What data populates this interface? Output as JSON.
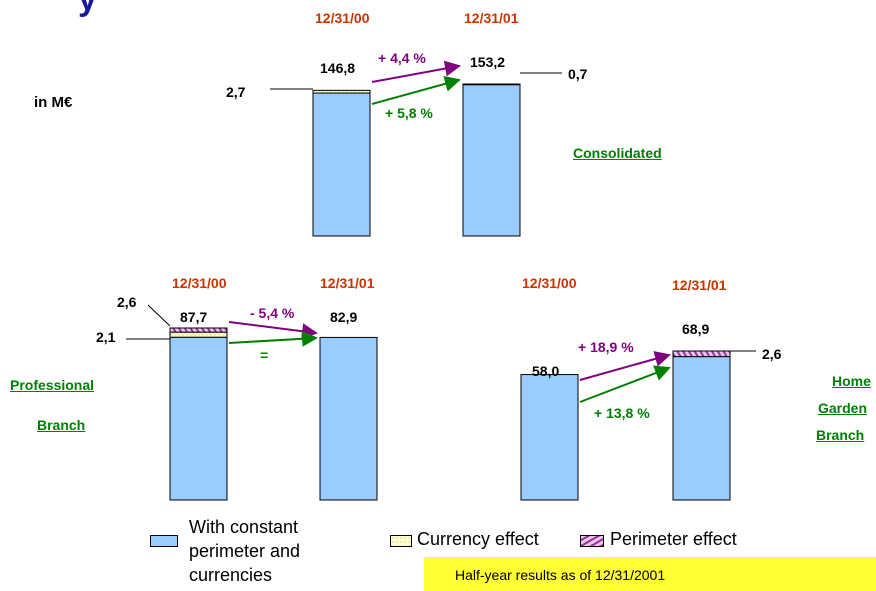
{
  "unit_label": "in M€",
  "colors": {
    "constant": "#99ccff",
    "currency": "#ffffcc",
    "perimeter": "#cc99cc",
    "date": "#cc3300",
    "purple": "#800080",
    "green": "#008000",
    "footer": "#ffff33"
  },
  "consolidated": {
    "label": "Consolidated",
    "date1": "12/31/00",
    "date2": "12/31/01",
    "total1": "146,8",
    "total2": "153,2",
    "side1": "2,7",
    "side2": "0,7",
    "growth_total": "+ 4,4 %",
    "growth_constant": "+ 5,8 %"
  },
  "professional": {
    "label_line1": "Professional",
    "label_line2": "Branch",
    "date1": "12/31/00",
    "date2": "12/31/01",
    "total1": "87,7",
    "total2": "82,9",
    "side_top": "2,6",
    "side_mid": "2,1",
    "growth_total": "- 5,4 %",
    "growth_constant": "="
  },
  "home_garden": {
    "label_line1": "Home",
    "label_line2": "Garden",
    "label_line3": "Branch",
    "date1": "12/31/00",
    "date2": "12/31/01",
    "total1": "58,0",
    "total2": "68,9",
    "side2": "2,6",
    "growth_total": "+ 18,9 %",
    "growth_constant": "+ 13,8 %"
  },
  "legend": {
    "constant_line1": "With constant",
    "constant_line2": "perimeter and",
    "constant_line3": "currencies",
    "currency": "Currency effect",
    "perimeter": "Perimeter effect"
  },
  "footer": "Half-year results as of 12/31/2001",
  "chart_data": [
    {
      "type": "bar",
      "categories": [
        "12/31/00",
        "12/31/01"
      ],
      "series": [
        {
          "name": "With constant perimeter and currencies",
          "values": [
            144.1,
            152.5
          ]
        },
        {
          "name": "Currency effect",
          "values": [
            2.7,
            0
          ]
        },
        {
          "name": "Perimeter effect",
          "values": [
            0,
            0.7
          ]
        }
      ],
      "totals": [
        146.8,
        153.2
      ],
      "title": "Consolidated"
    },
    {
      "type": "bar",
      "categories": [
        "12/31/00",
        "12/31/01"
      ],
      "series": [
        {
          "name": "With constant perimeter and currencies",
          "values": [
            83.0,
            82.9
          ]
        },
        {
          "name": "Currency effect",
          "values": [
            2.6,
            0
          ]
        },
        {
          "name": "Perimeter effect",
          "values": [
            2.1,
            0
          ]
        }
      ],
      "totals": [
        87.7,
        82.9
      ],
      "title": "Professional Branch"
    },
    {
      "type": "bar",
      "categories": [
        "12/31/00",
        "12/31/01"
      ],
      "series": [
        {
          "name": "With constant perimeter and currencies",
          "values": [
            58.0,
            66.3
          ]
        },
        {
          "name": "Currency effect",
          "values": [
            0,
            0
          ]
        },
        {
          "name": "Perimeter effect",
          "values": [
            0,
            2.6
          ]
        }
      ],
      "totals": [
        58.0,
        68.9
      ],
      "title": "Home Garden Branch"
    }
  ]
}
